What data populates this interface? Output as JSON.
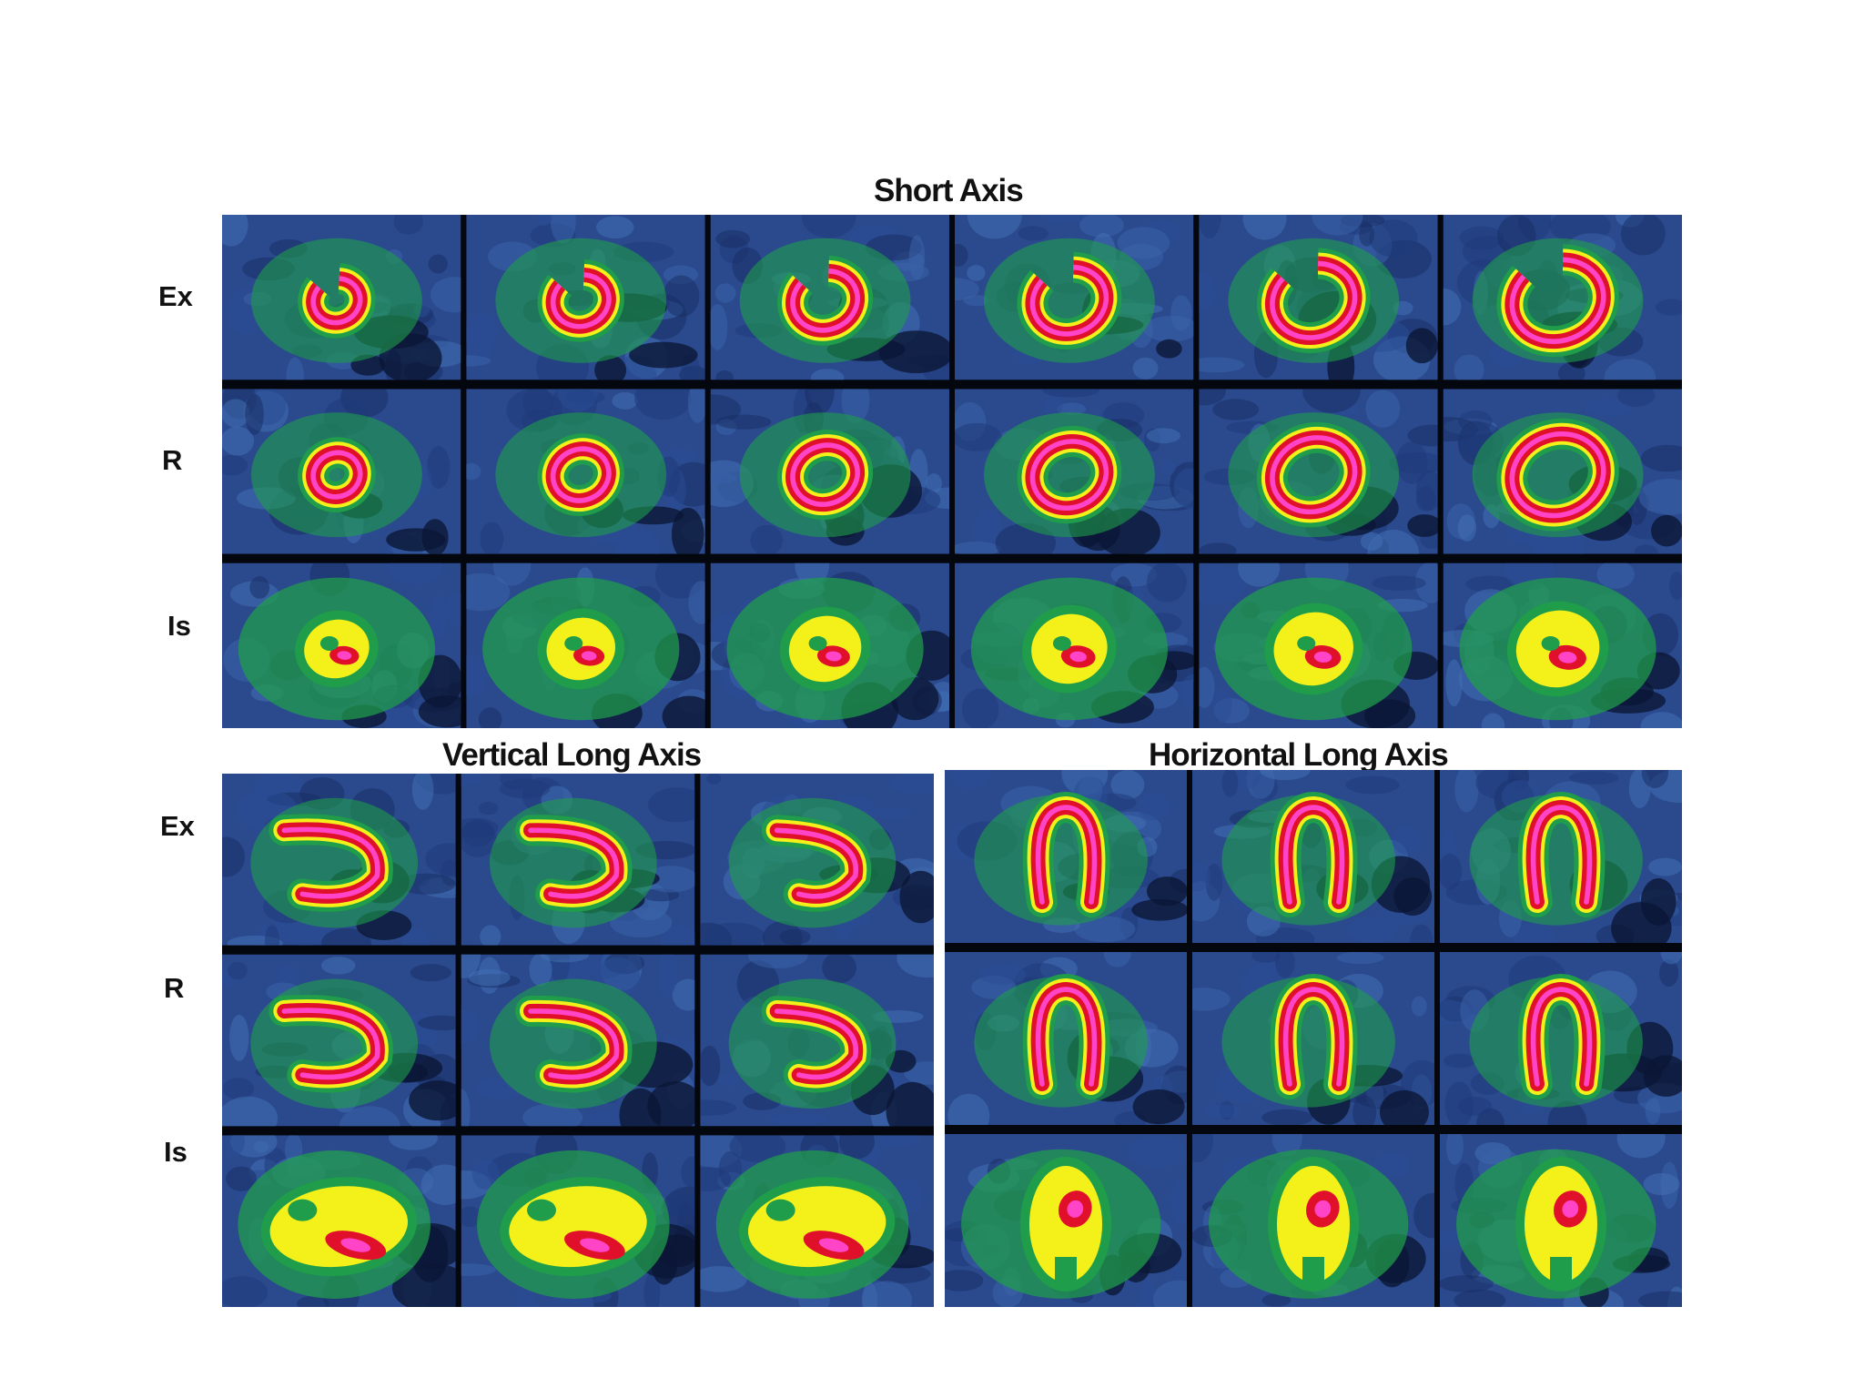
{
  "sections": {
    "short_axis": {
      "title": "Short Axis",
      "rows": [
        "Ex",
        "R",
        "Is"
      ],
      "columns": 6
    },
    "vertical_long_axis": {
      "title": "Vertical Long Axis",
      "rows": [
        "Ex",
        "R",
        "Is"
      ],
      "columns": 3
    },
    "horizontal_long_axis": {
      "title": "Horizontal Long Axis",
      "rows": [
        "Ex",
        "R",
        "Is"
      ],
      "columns": 3
    }
  },
  "colors": {
    "background": "#ffffff",
    "panel_bg": "#2b4a8e",
    "low": "#1f9d4a",
    "mid": "#f4f01a",
    "high": "#e0102a",
    "peak": "#ff44c8"
  }
}
